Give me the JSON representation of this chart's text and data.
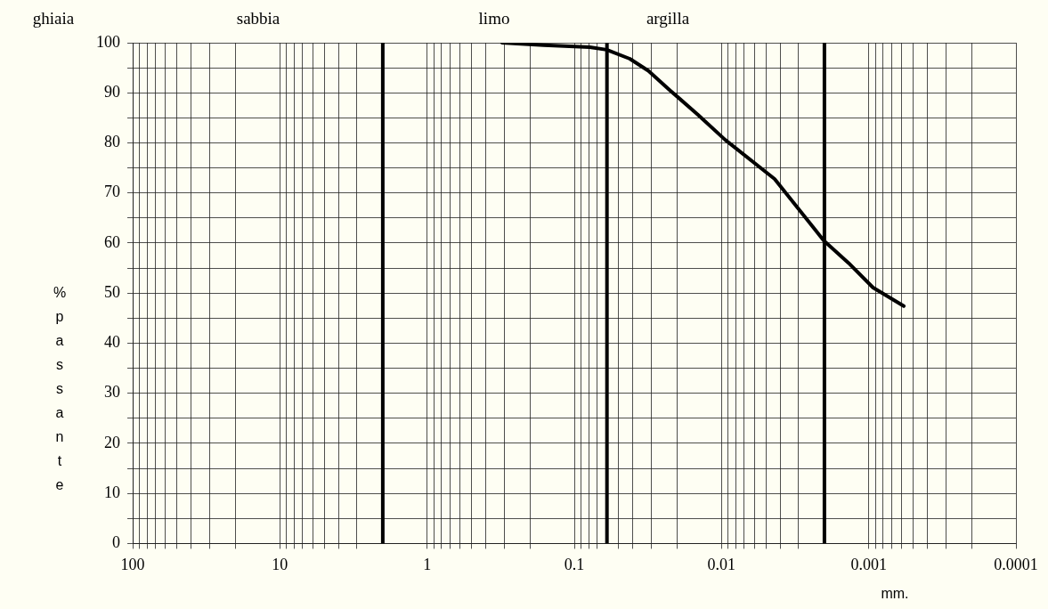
{
  "chart_data": {
    "type": "line",
    "xlabel": "mm.",
    "ylabel": "% passante",
    "annotations": [
      "ghiaia",
      "sabbia",
      "limo",
      "argilla"
    ],
    "log": "x",
    "grid": true,
    "legend": false,
    "marker": "none",
    "line_style": "solid",
    "xlim": [
      100,
      0.0001
    ],
    "xticks": [
      100,
      {
        "value": 90,
        "label": null
      },
      {
        "value": 80,
        "label": null
      },
      {
        "value": 70,
        "label": null
      },
      {
        "value": 60,
        "label": null
      },
      {
        "value": 50,
        "label": null
      },
      {
        "value": 40,
        "label": null
      },
      {
        "value": 30,
        "label": null
      },
      {
        "value": 20,
        "label": null
      },
      10,
      {
        "value": 9,
        "label": null
      },
      {
        "value": 8,
        "label": null
      },
      {
        "value": 7,
        "label": null
      },
      {
        "value": 6,
        "label": null
      },
      {
        "value": 5,
        "label": null
      },
      {
        "value": 4,
        "label": null
      },
      {
        "value": 3,
        "label": null
      },
      1,
      {
        "value": 0.9,
        "label": null
      },
      {
        "value": 0.8,
        "label": null
      },
      {
        "value": 0.7,
        "label": null
      },
      {
        "value": 0.6,
        "label": null
      },
      {
        "value": 0.5,
        "label": null
      },
      {
        "value": 0.4,
        "label": null
      },
      {
        "value": 0.3,
        "label": null
      },
      {
        "value": 0.2,
        "label": null
      },
      0.1,
      {
        "value": 0.09,
        "label": null
      },
      {
        "value": 0.08,
        "label": null
      },
      {
        "value": 0.07,
        "label": null
      },
      {
        "value": 0.05,
        "label": null
      },
      {
        "value": 0.04,
        "label": null
      },
      {
        "value": 0.03,
        "label": null
      },
      {
        "value": 0.02,
        "label": null
      },
      0.01,
      {
        "value": 0.009,
        "label": null
      },
      {
        "value": 0.008,
        "label": null
      },
      {
        "value": 0.007,
        "label": null
      },
      {
        "value": 0.006,
        "label": null
      },
      {
        "value": 0.005,
        "label": null
      },
      {
        "value": 0.004,
        "label": null
      },
      {
        "value": 0.003,
        "label": null
      },
      0.001,
      {
        "value": 0.0009,
        "label": null
      },
      {
        "value": 0.0008,
        "label": null
      },
      {
        "value": 0.0007,
        "label": null
      },
      {
        "value": 0.0006,
        "label": null
      },
      {
        "value": 0.0005,
        "label": null
      },
      {
        "value": 0.0004,
        "label": null
      },
      {
        "value": 0.0003,
        "label": null
      },
      {
        "value": 0.0002,
        "label": null
      },
      0.0001
    ],
    "ylim": [
      0,
      100
    ],
    "yticks": [
      0,
      {
        "value": 5,
        "label": null
      },
      10,
      {
        "value": 15,
        "label": null
      },
      20,
      {
        "value": 25,
        "label": null
      },
      30,
      {
        "value": 35,
        "label": null
      },
      40,
      {
        "value": 45,
        "label": null
      },
      50,
      {
        "value": 55,
        "label": null
      },
      60,
      {
        "value": 65,
        "label": null
      },
      70,
      {
        "value": 75,
        "label": null
      },
      80,
      {
        "value": 85,
        "label": null
      },
      90,
      {
        "value": 95,
        "label": null
      },
      100
    ],
    "ref_lines": [
      {
        "axis": "x",
        "value": 2,
        "color": "#000000"
      },
      {
        "axis": "x",
        "value": 0.06,
        "color": "#000000"
      },
      {
        "axis": "x",
        "value": 0.002,
        "color": "#000000"
      }
    ],
    "series": [
      {
        "color": "#000000",
        "x": [
          0.31,
          0.161,
          0.0785,
          0.0603,
          0.042,
          0.0314,
          0.0224,
          0.01455,
          0.00943,
          0.00436,
          0.00202,
          0.00137,
          0.000935,
          0.000578
        ],
        "values": [
          100,
          99.5,
          99.1,
          98.6,
          96.8,
          94.4,
          90.5,
          85.7,
          80.6,
          72.8,
          60.5,
          56.0,
          51.1,
          47.4
        ]
      }
    ]
  }
}
